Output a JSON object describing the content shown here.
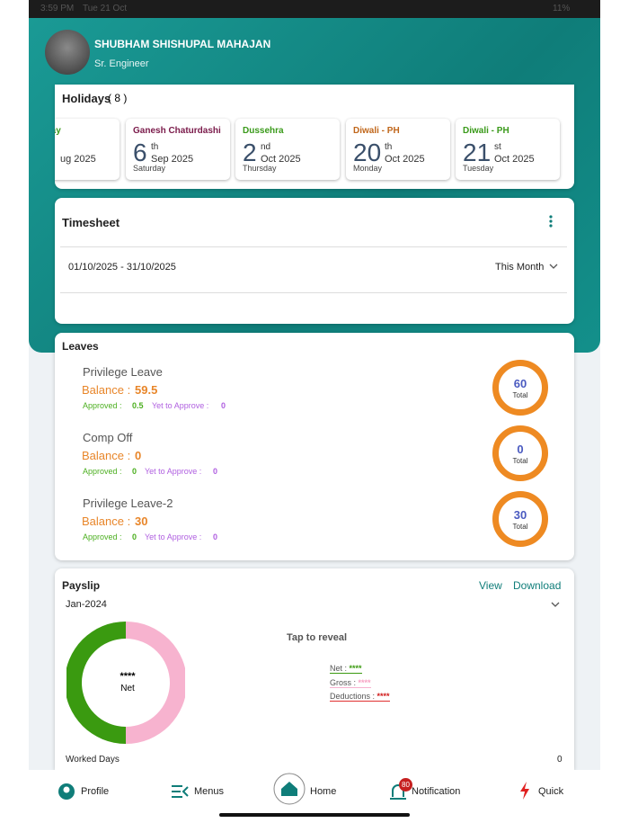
{
  "status": {
    "time": "3:59 PM",
    "date": "Tue 21 Oct",
    "battery": "11%"
  },
  "profile": {
    "name": "SHUBHAM SHISHUPAL MAHAJAN",
    "role": "Sr. Engineer"
  },
  "holidays": {
    "title": "Holidays",
    "count": "( 8 )",
    "items": [
      {
        "name": "ence day",
        "month_year": "ug 2025",
        "color": "#3a9a1a"
      },
      {
        "name": "Ganesh Chaturdashi",
        "day": 6,
        "suffix": "th",
        "month_year": "Sep 2025",
        "weekday": "Saturday",
        "color": "#7a1a4a"
      },
      {
        "name": "Dussehra",
        "day": 2,
        "suffix": "nd",
        "month_year": "Oct 2025",
        "weekday": "Thursday",
        "color": "#3a9a1a"
      },
      {
        "name": "Diwali - PH",
        "day": 20,
        "suffix": "th",
        "month_year": "Oct 2025",
        "weekday": "Monday",
        "color": "#c0661a"
      },
      {
        "name": "Diwali - PH",
        "day": 21,
        "suffix": "st",
        "month_year": "Oct 2025",
        "weekday": "Tuesday",
        "color": "#3a9a1a"
      }
    ]
  },
  "timesheet": {
    "title": "Timesheet",
    "range": "01/10/2025 - 31/10/2025",
    "filter": "This Month"
  },
  "leaves": {
    "title": "Leaves",
    "items": [
      {
        "name": "Privilege Leave",
        "balance_label": "Balance :",
        "balance": 59.5,
        "approved_label": "Approved :",
        "approved": 0.5,
        "pending_label": "Yet to Approve :",
        "pending": 0,
        "total": 60,
        "total_label": "Total"
      },
      {
        "name": "Comp Off",
        "balance_label": "Balance :",
        "balance": 0,
        "approved_label": "Approved :",
        "approved": 0,
        "pending_label": "Yet to Approve :",
        "pending": 0,
        "total": 0,
        "total_label": "Total"
      },
      {
        "name": "Privilege Leave-2",
        "balance_label": "Balance :",
        "balance": 30,
        "approved_label": "Approved :",
        "approved": 0,
        "pending_label": "Yet to Approve :",
        "pending": 0,
        "total": 30,
        "total_label": "Total"
      }
    ]
  },
  "payslip": {
    "title": "Payslip",
    "view": "View",
    "download": "Download",
    "month": "Jan-2024",
    "donut_value": "****",
    "donut_label": "Net",
    "reveal": "Tap to reveal",
    "net_label": "Net :",
    "net": "****",
    "gross_label": "Gross :",
    "gross": "****",
    "deductions_label": "Deductions :",
    "deductions": "****",
    "worked_days_label": "Worked Days",
    "worked_days": 0
  },
  "nav": {
    "profile": "Profile",
    "menus": "Menus",
    "home": "Home",
    "notification": "Notification",
    "badge": 80,
    "quick": "Quick"
  }
}
